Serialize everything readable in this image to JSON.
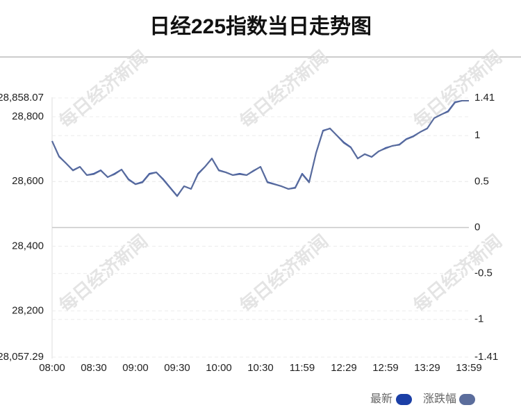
{
  "chart_data": {
    "type": "line",
    "title": "日经225指数当日走势图",
    "watermark": "每日经济新闻",
    "categories": [
      "08:00",
      null,
      null,
      null,
      null,
      null,
      "08:30",
      null,
      null,
      null,
      null,
      null,
      "09:00",
      null,
      null,
      null,
      null,
      null,
      "09:30",
      null,
      null,
      null,
      null,
      null,
      "10:00",
      null,
      null,
      null,
      null,
      null,
      "10:30",
      null,
      null,
      null,
      null,
      null,
      "11:59",
      null,
      null,
      null,
      null,
      null,
      "12:29",
      null,
      null,
      null,
      null,
      null,
      "12:59",
      null,
      null,
      null,
      null,
      null,
      "13:29",
      null,
      null,
      null,
      null,
      null,
      "13:59"
    ],
    "series": [
      {
        "name": "最新",
        "color": "#1b3fa6",
        "values": [
          28725.0,
          28677.7,
          28656.3,
          28634.8,
          28645.5,
          28619.8,
          28624.1,
          28634.8,
          28613.3,
          28624.1,
          28637.0,
          28606.9,
          28591.9,
          28598.3,
          28624.1,
          28628.4,
          28606.9,
          28581.2,
          28555.4,
          28585.4,
          28576.9,
          28624.1,
          28645.5,
          28671.3,
          28634.8,
          28628.4,
          28619.8,
          28624.1,
          28619.8,
          28632.7,
          28645.5,
          28598.3,
          28591.9,
          28585.4,
          28576.9,
          28581.2,
          28624.1,
          28598.3,
          28688.5,
          28757.2,
          28763.6,
          28742.2,
          28720.7,
          28705.7,
          28671.3,
          28684.2,
          28675.6,
          28692.8,
          28703.5,
          28710.0,
          28714.3,
          28731.4,
          28740.0,
          28752.9,
          28763.6,
          28795.8,
          28806.6,
          28817.3,
          28845.2,
          28849.5,
          28849.5
        ]
      },
      {
        "name": "涨跌幅",
        "color": "#5b6d9c",
        "axis": "y2",
        "values": [
          0.94,
          0.77,
          0.7,
          0.62,
          0.66,
          0.57,
          0.58,
          0.62,
          0.55,
          0.58,
          0.63,
          0.52,
          0.47,
          0.49,
          0.58,
          0.6,
          0.52,
          0.43,
          0.34,
          0.45,
          0.42,
          0.58,
          0.66,
          0.75,
          0.62,
          0.6,
          0.57,
          0.58,
          0.57,
          0.62,
          0.66,
          0.49,
          0.47,
          0.45,
          0.42,
          0.43,
          0.58,
          0.49,
          0.81,
          1.05,
          1.08,
          1.0,
          0.92,
          0.87,
          0.75,
          0.8,
          0.77,
          0.83,
          0.86,
          0.89,
          0.9,
          0.96,
          0.99,
          1.04,
          1.08,
          1.19,
          1.23,
          1.26,
          1.36,
          1.38,
          1.38
        ]
      }
    ],
    "ylim": [
      28057.29,
      28858.07
    ],
    "yticks": [
      {
        "value": 28057.29,
        "label": "28,057.29"
      },
      {
        "value": 28200,
        "label": "28,200"
      },
      {
        "value": 28400,
        "label": "28,400"
      },
      {
        "value": 28600,
        "label": "28,600"
      },
      {
        "value": 28800,
        "label": "28,800"
      },
      {
        "value": 28858.07,
        "label": "28,858.07"
      }
    ],
    "y2lim": [
      -1.41,
      1.41
    ],
    "y2ticks": [
      -1.41,
      -1,
      -0.5,
      0,
      0.5,
      1,
      1.41
    ],
    "grid": true
  }
}
